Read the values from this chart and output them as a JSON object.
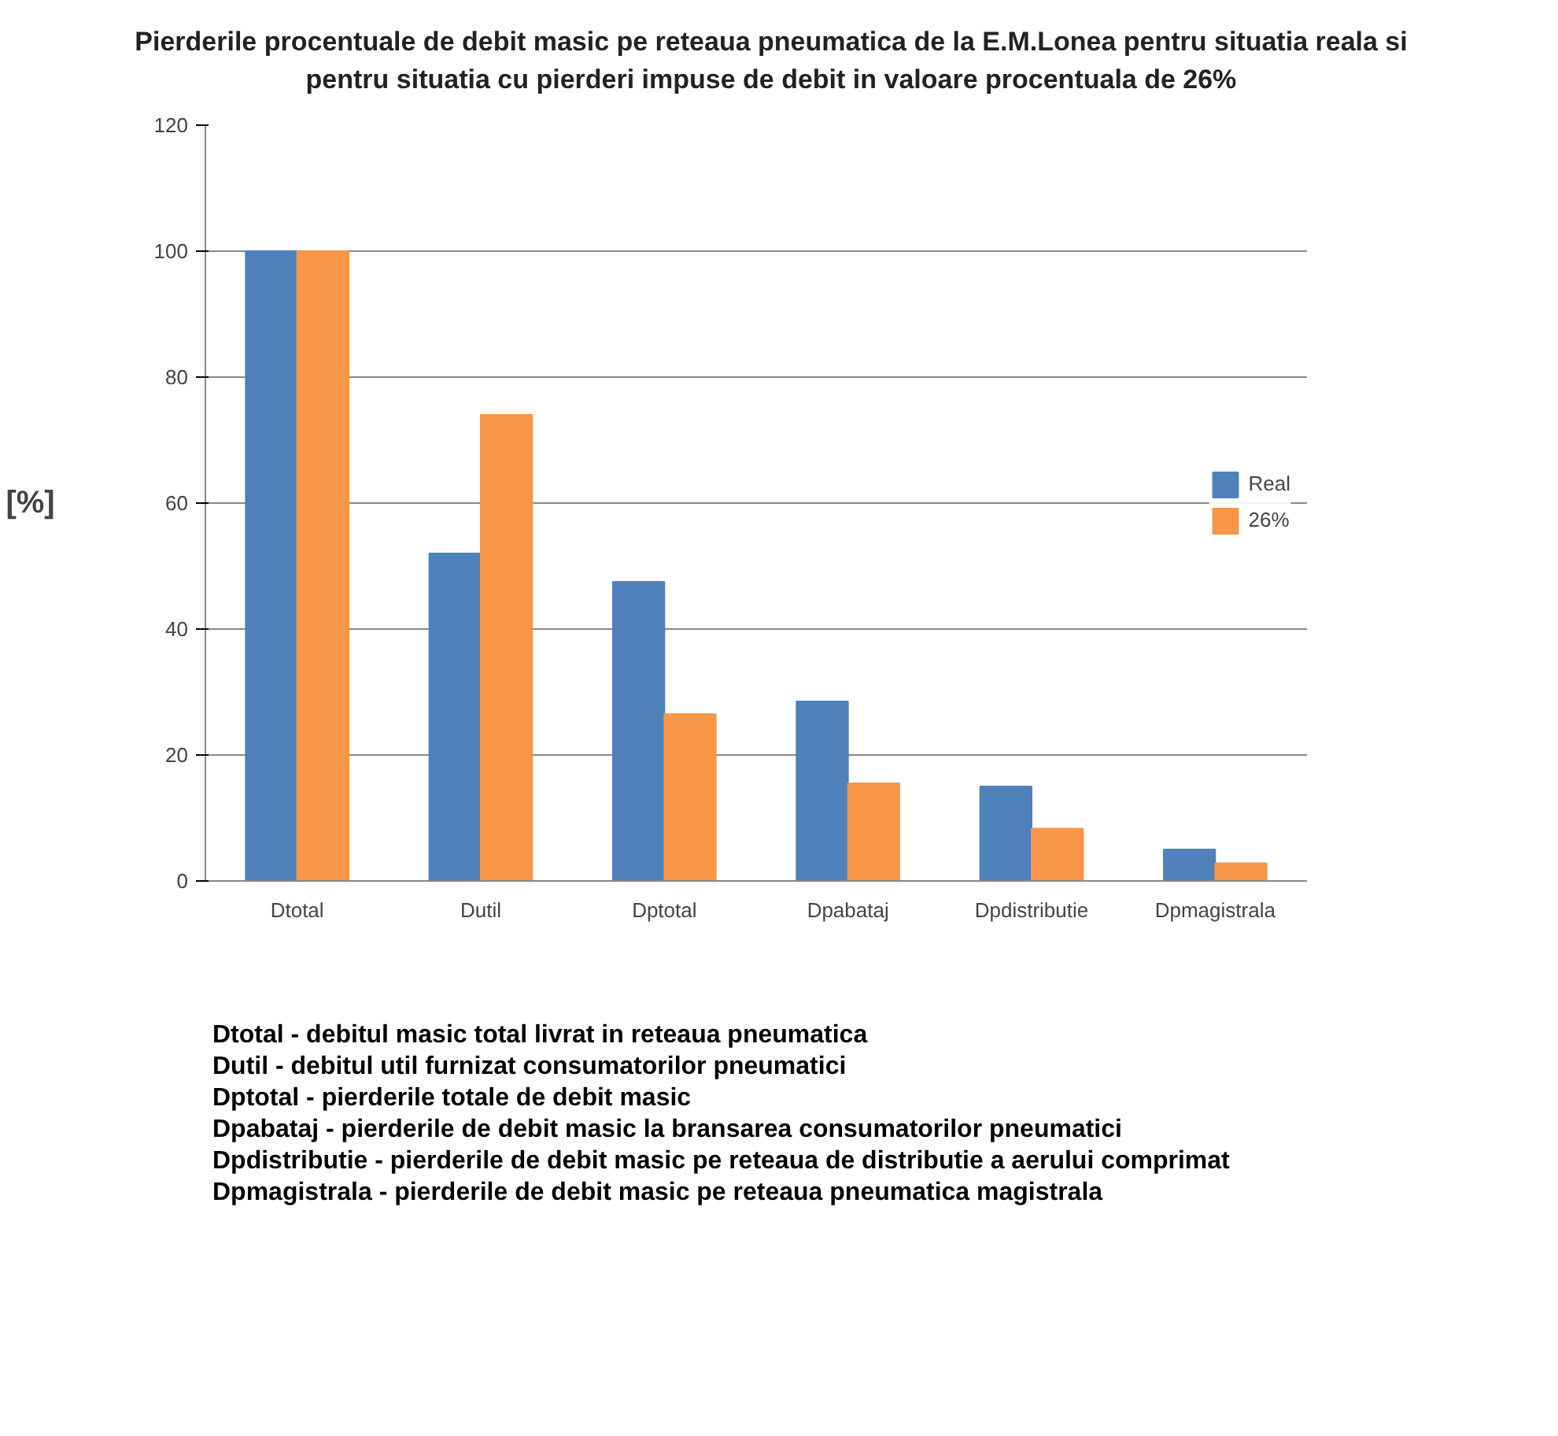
{
  "chart_data": {
    "type": "bar",
    "title": "Pierderile procentuale de debit masic pe reteaua pneumatica de la E.M.Lonea pentru situatia reala si pentru situatia cu pierderi impuse de debit in valoare procentuala de 26%",
    "ylabel": "[%]",
    "categories": [
      "Dtotal",
      "Dutil",
      "Dptotal",
      "Dpabataj",
      "Dpdistributie",
      "Dpmagistrala"
    ],
    "series": [
      {
        "name": "Real",
        "color": "#4f81bd",
        "values": [
          100,
          52,
          47.5,
          28.5,
          15,
          5
        ]
      },
      {
        "name": "26%",
        "color": "#f79646",
        "values": [
          100,
          74,
          26.5,
          15.5,
          8.3,
          2.8
        ]
      }
    ],
    "ylim": [
      0,
      120
    ],
    "yticks": [
      0,
      20,
      40,
      60,
      80,
      100,
      120
    ],
    "grid": "y",
    "legend": "right",
    "annotations": [
      "Dtotal - debitul masic total livrat in reteaua pneumatica",
      "Dutil - debitul util furnizat consumatorilor pneumatici",
      "Dptotal - pierderile totale de debit masic",
      "Dpabataj - pierderile de debit masic la bransarea consumatorilor pneumatici",
      "Dpdistributie - pierderile de debit masic pe reteaua de distributie a aerului comprimat",
      "Dpmagistrala - pierderile de debit masic pe reteaua pneumatica magistrala"
    ]
  }
}
